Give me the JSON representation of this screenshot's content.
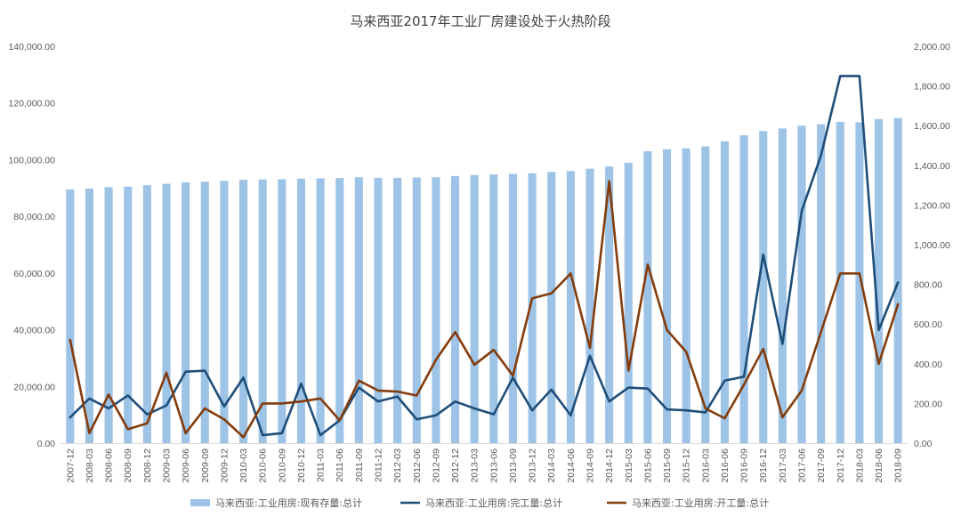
{
  "chart_data": {
    "type": "bar+line",
    "title": "马来西亚2017年工业厂房建设处于火热阶段",
    "categories": [
      "2007-12",
      "2008-03",
      "2008-06",
      "2008-09",
      "2008-12",
      "2009-03",
      "2009-06",
      "2009-09",
      "2009-12",
      "2010-03",
      "2010-06",
      "2010-09",
      "2010-12",
      "2011-03",
      "2011-06",
      "2011-09",
      "2011-12",
      "2012-03",
      "2012-06",
      "2012-09",
      "2012-12",
      "2013-03",
      "2013-06",
      "2013-09",
      "2013-12",
      "2014-03",
      "2014-06",
      "2014-09",
      "2014-12",
      "2015-03",
      "2015-06",
      "2015-09",
      "2015-12",
      "2016-03",
      "2016-06",
      "2016-09",
      "2016-12",
      "2017-03",
      "2017-06",
      "2017-09",
      "2017-12",
      "2018-03",
      "2018-06",
      "2018-09"
    ],
    "y_left": {
      "ylim": [
        0,
        140000
      ],
      "ticks": [
        "0.00",
        "20,000.00",
        "40,000.00",
        "60,000.00",
        "80,000.00",
        "100,000.00",
        "120,000.00",
        "140,000.00"
      ]
    },
    "y_right": {
      "ylim": [
        0,
        2000
      ],
      "ticks": [
        "0.00",
        "200.00",
        "400.00",
        "600.00",
        "800.00",
        "1,000.00",
        "1,200.00",
        "1,400.00",
        "1,600.00",
        "1,800.00",
        "2,000.00"
      ]
    },
    "grid": false,
    "legend_position": "bottom",
    "series": [
      {
        "name": "马来西亚:工业用房:现有存量:总计",
        "type": "bar",
        "axis": "left",
        "color": "#9dc3e6",
        "values": [
          89500,
          89800,
          90300,
          90500,
          91000,
          91500,
          92000,
          92200,
          92500,
          92900,
          93000,
          93100,
          93300,
          93400,
          93500,
          93800,
          93600,
          93600,
          93700,
          93800,
          94200,
          94600,
          94800,
          95000,
          95200,
          95700,
          96000,
          96800,
          97600,
          98900,
          103000,
          103700,
          104000,
          104700,
          106500,
          108600,
          110100,
          111000,
          112000,
          112500,
          113300,
          113200,
          114300,
          114700
        ]
      },
      {
        "name": "马来西亚:工业用房:完工量:总计",
        "type": "line",
        "axis": "right",
        "color": "#1f4e79",
        "values": [
          130,
          225,
          175,
          240,
          145,
          190,
          360,
          365,
          185,
          330,
          40,
          50,
          300,
          40,
          115,
          280,
          210,
          235,
          120,
          140,
          210,
          175,
          145,
          330,
          165,
          270,
          140,
          440,
          210,
          280,
          275,
          170,
          165,
          155,
          315,
          335,
          950,
          500,
          1170,
          1450,
          1850,
          1850,
          570,
          810
        ]
      },
      {
        "name": "马来西亚:工业用房:开工量:总计",
        "type": "line",
        "axis": "right",
        "color": "#843c0c",
        "values": [
          520,
          50,
          245,
          70,
          100,
          355,
          50,
          175,
          120,
          30,
          200,
          200,
          210,
          225,
          115,
          315,
          265,
          260,
          240,
          420,
          560,
          395,
          470,
          340,
          730,
          755,
          855,
          480,
          1320,
          365,
          900,
          570,
          460,
          175,
          125,
          295,
          475,
          130,
          265,
          560,
          855,
          855,
          400,
          700
        ]
      }
    ]
  }
}
